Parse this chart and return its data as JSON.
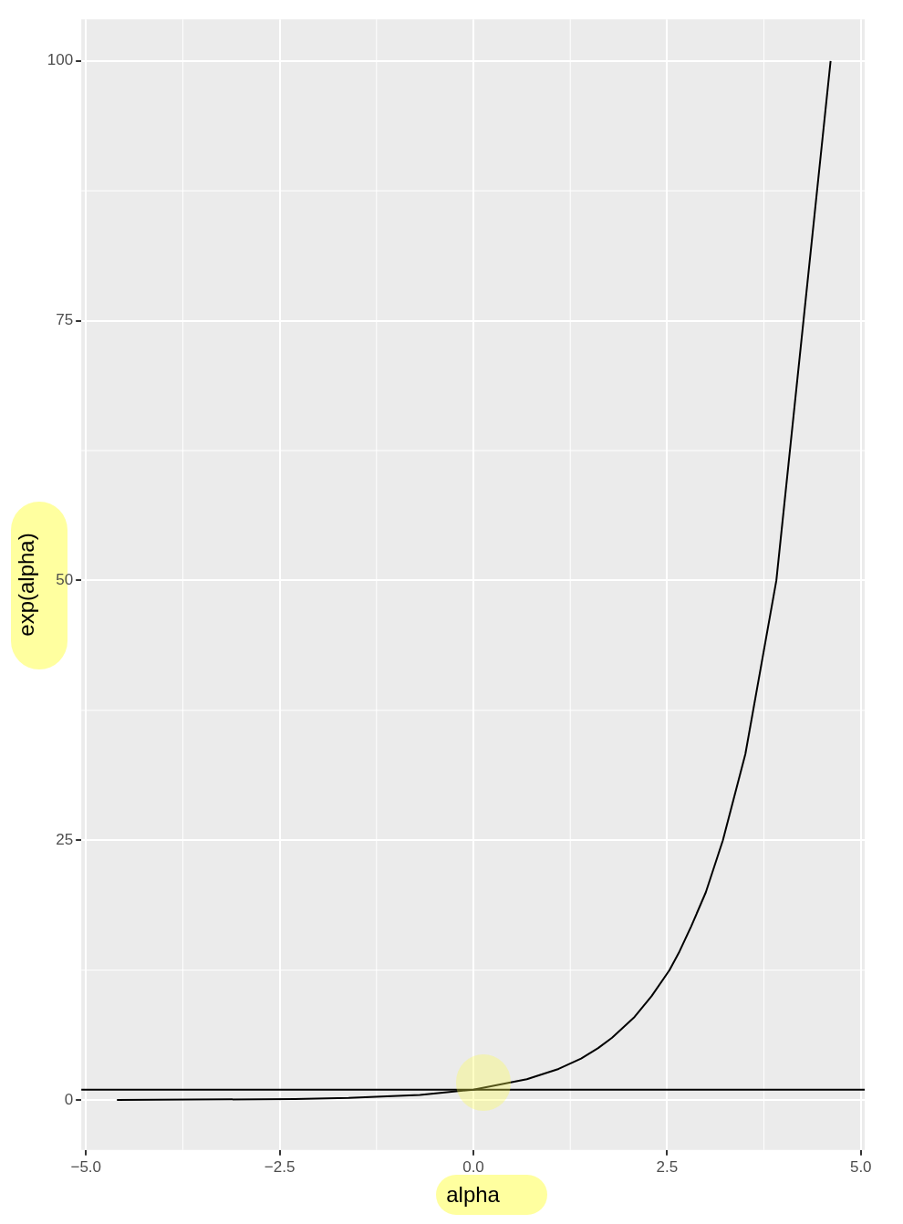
{
  "chart_data": {
    "type": "line",
    "xlabel": "alpha",
    "ylabel": "exp(alpha)",
    "x": [
      -4.6,
      -2.3,
      -1.61,
      -0.69,
      0,
      0.69,
      1.1,
      1.39,
      1.61,
      1.79,
      2.08,
      2.3,
      2.53,
      2.66,
      2.81,
      3,
      3.22,
      3.51,
      3.91,
      4.61
    ],
    "series": [
      {
        "color": "#000000",
        "values": [
          0,
          0.1,
          0.2,
          0.5,
          1,
          2,
          3,
          4,
          5,
          6,
          8,
          10,
          12.5,
          14.3,
          16.7,
          20,
          25,
          33.3,
          50,
          100
        ]
      }
    ],
    "xlim": [
      -5.06,
      5.05
    ],
    "xticks": [
      {
        "value": -5,
        "label": "−5.0"
      },
      {
        "value": -2.5,
        "label": "−2.5"
      },
      {
        "value": 0,
        "label": "0.0"
      },
      {
        "value": 2.5,
        "label": "2.5"
      },
      {
        "value": 5,
        "label": "5.0"
      }
    ],
    "ylim": [
      -4.8,
      104
    ],
    "yticks": [
      0,
      25,
      50,
      75,
      100
    ],
    "ref_lines": [
      {
        "axis": "y",
        "value": 1,
        "color": "#000000"
      }
    ],
    "grid": true,
    "legend": false,
    "marker": "none",
    "line_style": "solid"
  }
}
